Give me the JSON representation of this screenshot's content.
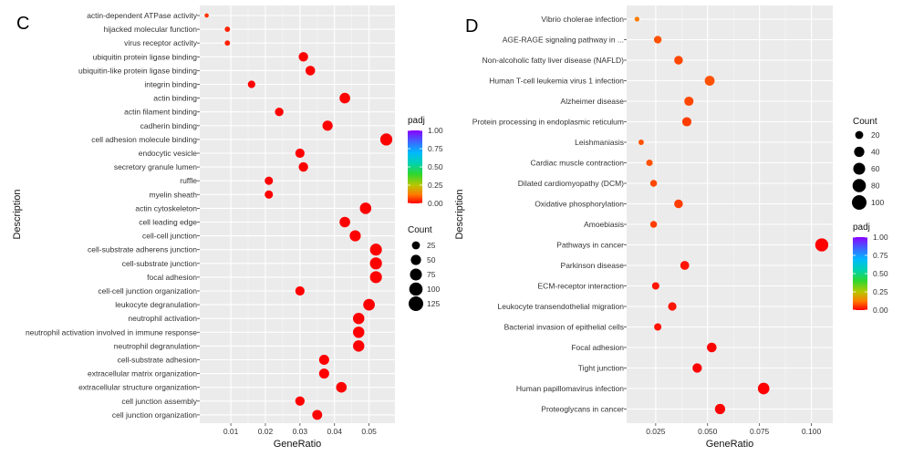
{
  "chart_data": [
    {
      "type": "scatter",
      "panel_label": "C",
      "xlabel": "GeneRatio",
      "ylabel": "Description",
      "xlim": [
        0.001,
        0.0575
      ],
      "xticks": [
        0.01,
        0.02,
        0.03,
        0.04,
        0.05
      ],
      "xtick_labels": [
        "0.01",
        "0.02",
        "0.03",
        "0.04",
        "0.05"
      ],
      "grid": true,
      "color_legend": {
        "title": "padj",
        "labels": [
          "1.00",
          "0.75",
          "0.50",
          "0.25",
          "0.00"
        ],
        "values": [
          1.0,
          0.75,
          0.5,
          0.25,
          0.0
        ]
      },
      "size_legend": {
        "title": "Count",
        "labels": [
          "25",
          "50",
          "75",
          "100",
          "125"
        ],
        "values": [
          25,
          50,
          75,
          100,
          125
        ]
      },
      "categories": [
        "actin-dependent ATPase activity",
        "hijacked molecular function",
        "virus receptor activity",
        "ubiquitin protein ligase binding",
        "ubiquitin-like protein ligase binding",
        "integrin binding",
        "actin binding",
        "actin filament binding",
        "cadherin binding",
        "cell adhesion molecule binding",
        "endocytic vesicle",
        "secretory granule lumen",
        "ruffle",
        "myelin sheath",
        "actin cytoskeleton",
        "cell leading edge",
        "cell-cell junction",
        "cell-substrate adherens junction",
        "cell-substrate junction",
        "focal adhesion",
        "cell-cell junction organization",
        "leukocyte degranulation",
        "neutrophil activation",
        "neutrophil activation involved in immune response",
        "neutrophil degranulation",
        "cell-substrate adhesion",
        "extracellular matrix organization",
        "extracellular structure organization",
        "cell junction assembly",
        "cell junction organization"
      ],
      "points": [
        {
          "x": 0.003,
          "count": 2,
          "padj": 0.05
        },
        {
          "x": 0.009,
          "count": 6,
          "padj": 0.03
        },
        {
          "x": 0.009,
          "count": 6,
          "padj": 0.03
        },
        {
          "x": 0.031,
          "count": 40,
          "padj": 0.0
        },
        {
          "x": 0.033,
          "count": 42,
          "padj": 0.0
        },
        {
          "x": 0.016,
          "count": 20,
          "padj": 0.0
        },
        {
          "x": 0.043,
          "count": 55,
          "padj": 0.0
        },
        {
          "x": 0.024,
          "count": 30,
          "padj": 0.0
        },
        {
          "x": 0.038,
          "count": 50,
          "padj": 0.0
        },
        {
          "x": 0.055,
          "count": 78,
          "padj": 0.0
        },
        {
          "x": 0.03,
          "count": 38,
          "padj": 0.0
        },
        {
          "x": 0.031,
          "count": 40,
          "padj": 0.0
        },
        {
          "x": 0.021,
          "count": 27,
          "padj": 0.0
        },
        {
          "x": 0.021,
          "count": 27,
          "padj": 0.0
        },
        {
          "x": 0.049,
          "count": 68,
          "padj": 0.0
        },
        {
          "x": 0.043,
          "count": 55,
          "padj": 0.0
        },
        {
          "x": 0.046,
          "count": 62,
          "padj": 0.0
        },
        {
          "x": 0.052,
          "count": 75,
          "padj": 0.0
        },
        {
          "x": 0.052,
          "count": 77,
          "padj": 0.0
        },
        {
          "x": 0.052,
          "count": 76,
          "padj": 0.0
        },
        {
          "x": 0.03,
          "count": 38,
          "padj": 0.0
        },
        {
          "x": 0.05,
          "count": 70,
          "padj": 0.0
        },
        {
          "x": 0.047,
          "count": 66,
          "padj": 0.0
        },
        {
          "x": 0.047,
          "count": 66,
          "padj": 0.0
        },
        {
          "x": 0.047,
          "count": 66,
          "padj": 0.0
        },
        {
          "x": 0.037,
          "count": 48,
          "padj": 0.0
        },
        {
          "x": 0.037,
          "count": 48,
          "padj": 0.0
        },
        {
          "x": 0.042,
          "count": 55,
          "padj": 0.0
        },
        {
          "x": 0.03,
          "count": 39,
          "padj": 0.0
        },
        {
          "x": 0.035,
          "count": 46,
          "padj": 0.0
        }
      ]
    },
    {
      "type": "scatter",
      "panel_label": "D",
      "xlabel": "GeneRatio",
      "ylabel": "Description",
      "xlim": [
        0.011,
        0.1103
      ],
      "xticks": [
        0.025,
        0.05,
        0.075,
        0.1
      ],
      "xtick_labels": [
        "0.025",
        "0.050",
        "0.075",
        "0.100"
      ],
      "grid": true,
      "color_legend": {
        "title": "padj",
        "labels": [
          "1.00",
          "0.75",
          "0.50",
          "0.25",
          "0.00"
        ],
        "values": [
          1.0,
          0.75,
          0.5,
          0.25,
          0.0
        ]
      },
      "size_legend": {
        "title": "Count",
        "labels": [
          "20",
          "40",
          "60",
          "80",
          "100"
        ],
        "values": [
          20,
          40,
          60,
          80,
          100
        ]
      },
      "categories": [
        "Vibrio cholerae infection",
        "AGE-RAGE signaling pathway in ...",
        "Non-alcoholic fatty liver disease (NAFLD)",
        "Human T-cell leukemia virus 1 infection",
        "Alzheimer disease",
        "Protein processing in endoplasmic reticulum",
        "Leishmaniasis",
        "Cardiac muscle contraction",
        "Dilated cardiomyopathy (DCM)",
        "Oxidative phosphorylation",
        "Amoebiasis",
        "Pathways in cancer",
        "Parkinson disease",
        "ECM-receptor interaction",
        "Leukocyte transendothelial migration",
        "Bacterial invasion of epithelial cells",
        "Focal adhesion",
        "Tight junction",
        "Human papillomavirus infection",
        "Proteoglycans in cancer"
      ],
      "points": [
        {
          "x": 0.016,
          "count": 3,
          "padj": 0.12
        },
        {
          "x": 0.026,
          "count": 17,
          "padj": 0.08
        },
        {
          "x": 0.036,
          "count": 25,
          "padj": 0.07
        },
        {
          "x": 0.051,
          "count": 36,
          "padj": 0.08
        },
        {
          "x": 0.041,
          "count": 30,
          "padj": 0.07
        },
        {
          "x": 0.04,
          "count": 30,
          "padj": 0.06
        },
        {
          "x": 0.018,
          "count": 5,
          "padj": 0.08
        },
        {
          "x": 0.022,
          "count": 10,
          "padj": 0.08
        },
        {
          "x": 0.024,
          "count": 12,
          "padj": 0.07
        },
        {
          "x": 0.036,
          "count": 25,
          "padj": 0.06
        },
        {
          "x": 0.024,
          "count": 12,
          "padj": 0.06
        },
        {
          "x": 0.105,
          "count": 76,
          "padj": 0.0
        },
        {
          "x": 0.039,
          "count": 27,
          "padj": 0.02
        },
        {
          "x": 0.025,
          "count": 15,
          "padj": 0.02
        },
        {
          "x": 0.033,
          "count": 23,
          "padj": 0.02
        },
        {
          "x": 0.026,
          "count": 15,
          "padj": 0.02
        },
        {
          "x": 0.052,
          "count": 34,
          "padj": 0.0
        },
        {
          "x": 0.045,
          "count": 32,
          "padj": 0.0
        },
        {
          "x": 0.077,
          "count": 55,
          "padj": 0.0
        },
        {
          "x": 0.056,
          "count": 40,
          "padj": 0.0
        }
      ]
    }
  ]
}
